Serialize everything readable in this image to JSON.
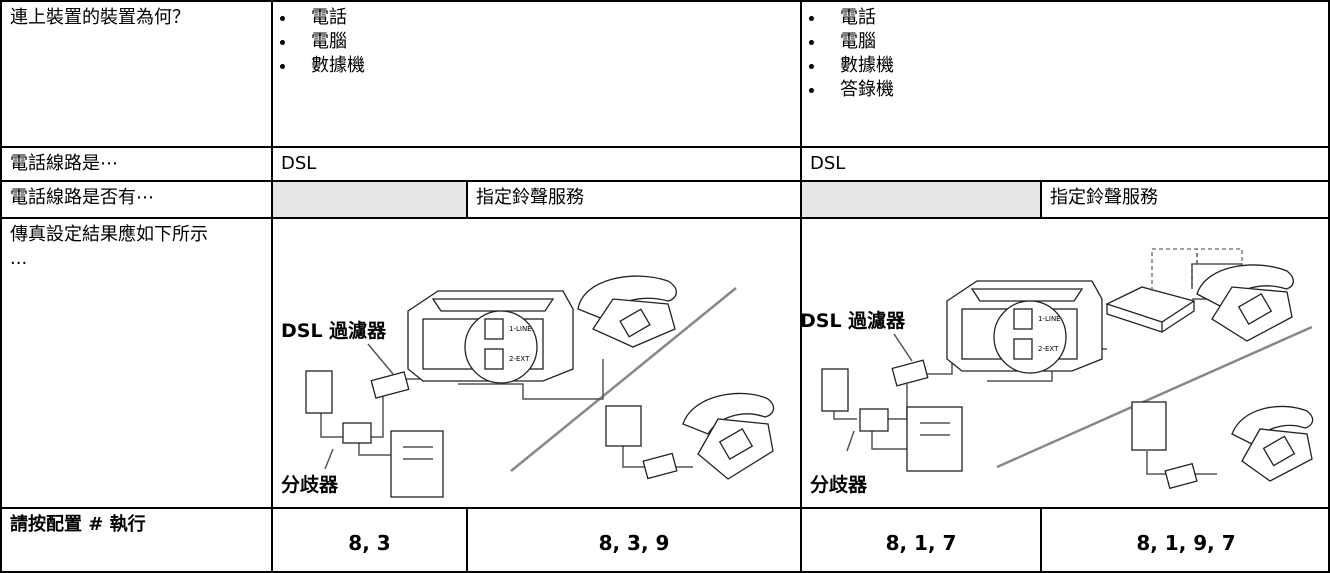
{
  "table": {
    "rows": [
      {
        "label": "連上裝置的裝置為何？",
        "left": [
          "電話",
          "電腦",
          "數據機"
        ],
        "right": [
          "電話",
          "電腦",
          "數據機",
          "答錄機"
        ]
      },
      {
        "label": "電話線路是⋯",
        "left": "DSL",
        "right": "DSL"
      },
      {
        "label": "電話線路是否有⋯",
        "left_service": "指定鈴聲服務",
        "right_service": "指定鈴聲服務"
      },
      {
        "label": "傳真設定結果應如下所示 ..."
      },
      {
        "label": "請按配置 # 執行",
        "values": [
          "8, 3",
          "8, 3, 9",
          "8, 1, 7",
          "8, 1, 9, 7"
        ]
      }
    ]
  },
  "diagrams": [
    {
      "filter_label": "DSL 過濾器",
      "splitter_label": "分歧器",
      "port1": "1-LINE",
      "port2": "2-EXT"
    },
    {
      "filter_label": "DSL 過濾器",
      "splitter_label": "分歧器",
      "port1": "1-LINE",
      "port2": "2-EXT"
    }
  ]
}
